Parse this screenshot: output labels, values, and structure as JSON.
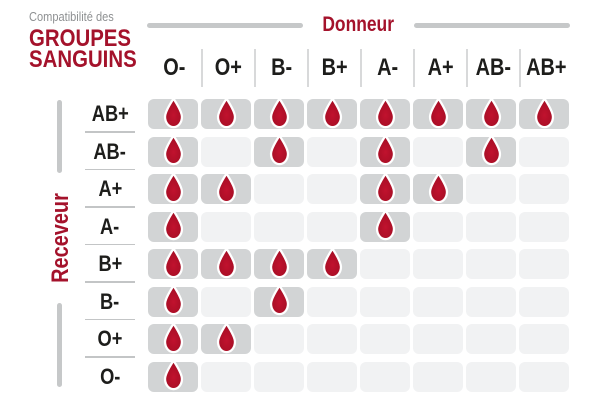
{
  "title": {
    "kicker": "Compatibilité des",
    "line1": "GROUPES",
    "line2": "SANGUINS"
  },
  "axes": {
    "donor": "Donneur",
    "recipient": "Receveur"
  },
  "icons": {
    "compatible_marker": "blood-drop-icon"
  },
  "colors": {
    "accent_red": "#A4122B",
    "drop_red": "#AC0F27",
    "compatible_cell_gray": "#D2D4D5",
    "incompatible_cell_gray": "#F1F2F3",
    "axis_line_gray": "#C6C8C9",
    "label_dark": "#1D1D1B",
    "kicker_gray": "#8E9092"
  },
  "chart_data": {
    "type": "heatmap",
    "title": "Compatibilité des GROUPES SANGUINS",
    "x_axis_label": "Donneur",
    "y_axis_label": "Receveur",
    "columns": [
      "O-",
      "O+",
      "B-",
      "B+",
      "A-",
      "A+",
      "AB-",
      "AB+"
    ],
    "rows": [
      "AB+",
      "AB-",
      "A+",
      "A-",
      "B+",
      "B-",
      "O+",
      "O-"
    ],
    "values": [
      [
        1,
        1,
        1,
        1,
        1,
        1,
        1,
        1
      ],
      [
        1,
        0,
        1,
        0,
        1,
        0,
        1,
        0
      ],
      [
        1,
        1,
        0,
        0,
        1,
        1,
        0,
        0
      ],
      [
        1,
        0,
        0,
        0,
        1,
        0,
        0,
        0
      ],
      [
        1,
        1,
        1,
        1,
        0,
        0,
        0,
        0
      ],
      [
        1,
        0,
        1,
        0,
        0,
        0,
        0,
        0
      ],
      [
        1,
        1,
        0,
        0,
        0,
        0,
        0,
        0
      ],
      [
        1,
        0,
        0,
        0,
        0,
        0,
        0,
        0
      ]
    ],
    "marker_meaning": "blood drop on dark cell = compatible, empty light cell = incompatible",
    "legend_position": "none",
    "grid": "off"
  }
}
